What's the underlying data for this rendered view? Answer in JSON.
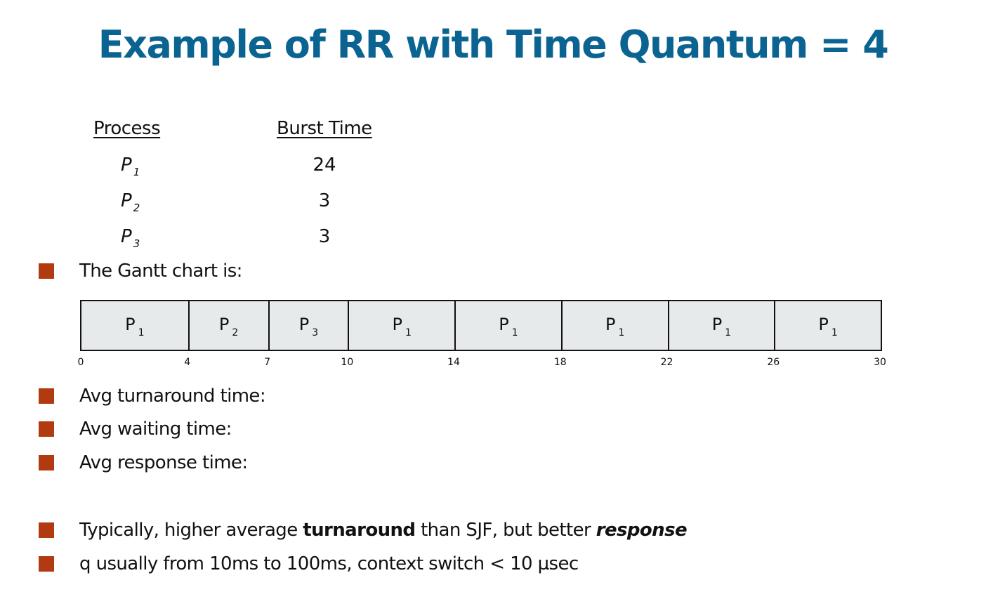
{
  "slide": {
    "title": "Example of RR with Time Quantum = 4",
    "title_color": "#0b6391",
    "bullet_color": "#b23a10"
  },
  "process_table": {
    "header_process": "Process",
    "header_burst": "Burst Time",
    "rows": [
      {
        "name": "P",
        "sub": "1",
        "burst": "24"
      },
      {
        "name": "P",
        "sub": "2",
        "burst": "3"
      },
      {
        "name": "P",
        "sub": "3",
        "burst": "3"
      }
    ]
  },
  "bullets": {
    "gantt_intro": "The Gantt chart is:",
    "avg_turnaround": "Avg turnaround time:",
    "avg_waiting": "Avg waiting time:",
    "avg_response": "Avg response time:",
    "typically_pre": "Typically, higher average ",
    "typically_bold": "turnaround",
    "typically_mid": " than SJF, but better ",
    "typically_bold_italic": "response",
    "quantum_note": "q usually from 10ms to 100ms, context switch < 10 µsec"
  },
  "gantt": {
    "fill_color": "#e6eaea",
    "segments": [
      {
        "label": "P",
        "sub": "1",
        "start": 0,
        "end": 4
      },
      {
        "label": "P",
        "sub": "2",
        "start": 4,
        "end": 7
      },
      {
        "label": "P",
        "sub": "3",
        "start": 7,
        "end": 10
      },
      {
        "label": "P",
        "sub": "1",
        "start": 10,
        "end": 14
      },
      {
        "label": "P",
        "sub": "1",
        "start": 14,
        "end": 18
      },
      {
        "label": "P",
        "sub": "1",
        "start": 18,
        "end": 22
      },
      {
        "label": "P",
        "sub": "1",
        "start": 22,
        "end": 26
      },
      {
        "label": "P",
        "sub": "1",
        "start": 26,
        "end": 30
      }
    ],
    "ticks": [
      "0",
      "4",
      "7",
      "10",
      "14",
      "18",
      "22",
      "26",
      "30"
    ]
  }
}
